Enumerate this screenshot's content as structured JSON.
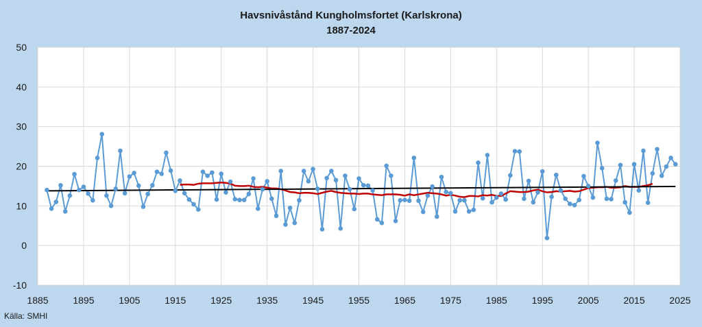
{
  "chart_data": {
    "type": "line",
    "title": "Havsnivåstånd Kungholmsfortet (Karlskrona)",
    "subtitle": "1887-2024",
    "source": "Källa: SMHI",
    "xlabel": "",
    "ylabel": "",
    "xlim": [
      1885,
      2025
    ],
    "ylim": [
      -10,
      50
    ],
    "x_ticks": [
      1885,
      1895,
      1905,
      1915,
      1925,
      1935,
      1945,
      1955,
      1965,
      1975,
      1985,
      1995,
      2005,
      2015,
      2025
    ],
    "y_ticks": [
      -10,
      0,
      10,
      20,
      30,
      40,
      50
    ],
    "grid": true,
    "legend": "none",
    "colors": {
      "background": "#bdd7ee",
      "plot_area": "#ffffff",
      "grid": "#d9d9d9",
      "annual": "#5b9bd5",
      "moving_average": "#c00000",
      "trend": "#000000"
    },
    "series": [
      {
        "kind": "annual",
        "x_start": 1887,
        "values": [
          14,
          9.3,
          11,
          15.2,
          8.6,
          12.6,
          18,
          14,
          14.8,
          13.1,
          11.4,
          22.1,
          28.1,
          12.6,
          10,
          14.3,
          23.9,
          13.2,
          17.4,
          18.3,
          15.1,
          9.8,
          13,
          15.2,
          18.6,
          18.1,
          23.4,
          18.9,
          13.8,
          16.4,
          13.2,
          11.6,
          10.4,
          9.1,
          18.6,
          17.6,
          18.4,
          11.6,
          18.1,
          13.4,
          16.1,
          11.7,
          11.5,
          11.5,
          13,
          16.9,
          9.3,
          14.2,
          16.2,
          11.8,
          7.5,
          18.8,
          5.3,
          9.5,
          5.7,
          11.4,
          18.8,
          16.2,
          19.3,
          14.3,
          4.1,
          17,
          18.8,
          16.5,
          4.3,
          17.6,
          14.2,
          9.2,
          16.9,
          15.2,
          15.1,
          13.9,
          6.6,
          5.7,
          20.1,
          17.6,
          6.2,
          11.4,
          11.5,
          11.3,
          22.1,
          11.3,
          8.5,
          12.6,
          14.9,
          7.3,
          17.3,
          13.5,
          13.2,
          8.6,
          11.4,
          11.4,
          8.6,
          9,
          20.9,
          11.9,
          22.8,
          10.9,
          12.1,
          13.1,
          11.6,
          17.7,
          23.8,
          23.7,
          11.8,
          16.3,
          10.9,
          13.4,
          18.7,
          1.9,
          12.3,
          17.8,
          13.9,
          11.8,
          10.5,
          10.2,
          11.5,
          17.5,
          15,
          12.1,
          25.9,
          19.5,
          11.8,
          11.7,
          16.4,
          20.3,
          10.9,
          8.3,
          20.5,
          13.9,
          23.9,
          10.8,
          18.2,
          24.3,
          17.6,
          19.9,
          22.1,
          20.5
        ]
      },
      {
        "kind": "moving-average",
        "x_start": 1916,
        "values": [
          15.3,
          15.4,
          15.4,
          15.3,
          15.6,
          15.7,
          15.7,
          15.7,
          15.8,
          15.9,
          15.8,
          15.6,
          15.1,
          15.0,
          15.0,
          15.1,
          14.8,
          14.7,
          14.8,
          14.6,
          14.4,
          14.4,
          14.2,
          13.9,
          13.5,
          13.4,
          13.2,
          13.3,
          13.3,
          13.2,
          13.0,
          13.3,
          13.6,
          13.8,
          13.5,
          13.3,
          13.2,
          13.1,
          13.1,
          13.0,
          13.1,
          13.1,
          12.9,
          12.8,
          12.7,
          12.9,
          12.9,
          12.9,
          12.8,
          12.6,
          12.9,
          12.7,
          12.9,
          13.1,
          13.3,
          13.2,
          13.1,
          12.9,
          12.6,
          12.8,
          12.6,
          12.3,
          12.2,
          12.5,
          12.5,
          12.4,
          12.7,
          12.6,
          12.8,
          12.5,
          12.5,
          13.1,
          13.7,
          13.6,
          13.5,
          13.5,
          13.6,
          13.9,
          14.1,
          13.7,
          13.4,
          13.5,
          13.7,
          13.6,
          13.7,
          13.8,
          13.6,
          13.7,
          14.1,
          14.5,
          14.6,
          14.7,
          14.7,
          14.8,
          14.6,
          14.6,
          14.7,
          15.0,
          14.8,
          14.8,
          14.8,
          15.0,
          15.2,
          15.6
        ]
      },
      {
        "kind": "trend",
        "x": [
          1887,
          2024
        ],
        "values": [
          13.8,
          14.9
        ]
      }
    ]
  }
}
